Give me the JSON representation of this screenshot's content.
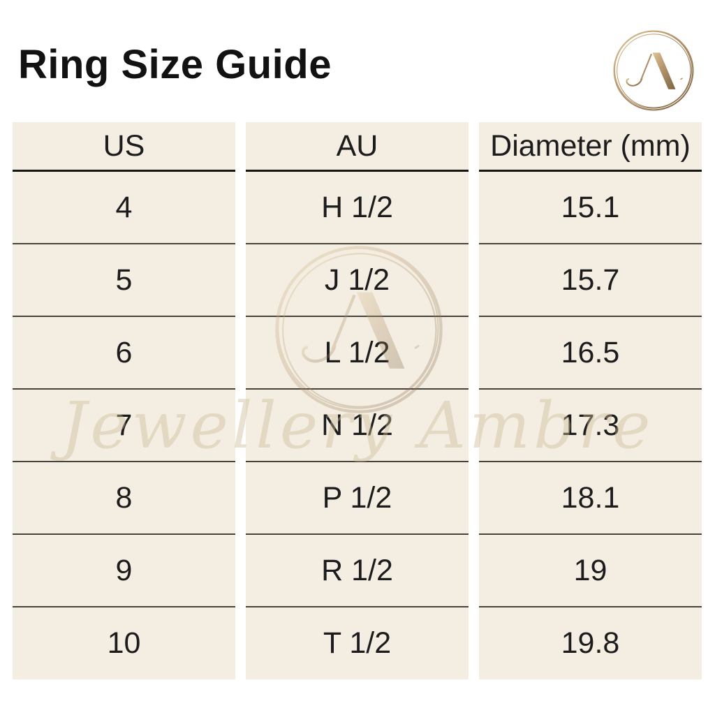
{
  "page": {
    "title": "Ring Size Guide"
  },
  "brand": {
    "monogram": "JA",
    "logo_icon": "ja-monogram-circle-icon",
    "watermark_icon": "ja-monogram-circle-icon",
    "watermark_text": "Jewellery Ambre"
  },
  "table": {
    "columns": [
      {
        "key": "us",
        "header": "US"
      },
      {
        "key": "au",
        "header": "AU"
      },
      {
        "key": "diameter",
        "header": "Diameter (mm)"
      }
    ],
    "rows": [
      {
        "us": "4",
        "au": "H 1/2",
        "diameter": "15.1"
      },
      {
        "us": "5",
        "au": "J 1/2",
        "diameter": "15.7"
      },
      {
        "us": "6",
        "au": "L 1/2",
        "diameter": "16.5"
      },
      {
        "us": "7",
        "au": "N 1/2",
        "diameter": "17.3"
      },
      {
        "us": "8",
        "au": "P 1/2",
        "diameter": "18.1"
      },
      {
        "us": "9",
        "au": "R 1/2",
        "diameter": "19"
      },
      {
        "us": "10",
        "au": "T 1/2",
        "diameter": "19.8"
      }
    ]
  },
  "colors": {
    "cell_bg": "#f4eee2",
    "header_rule": "#141414",
    "row_rule": "#46423c",
    "text": "#1c1c1c",
    "gold_light": "#d9bc8c",
    "gold_dark": "#7e6547",
    "watermark": "#cdbb97"
  }
}
